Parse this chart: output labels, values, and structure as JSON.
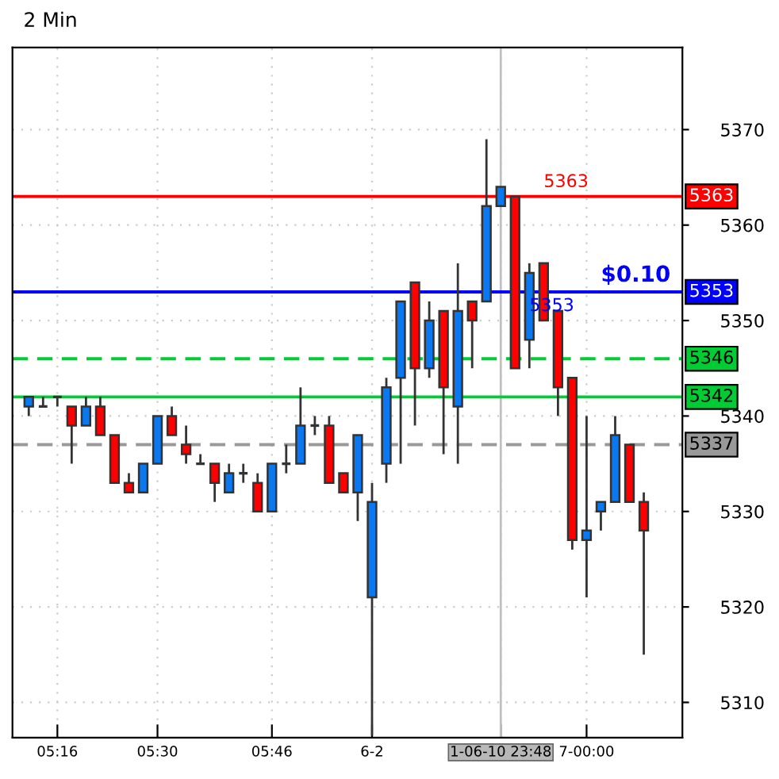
{
  "chart_data": {
    "type": "candlestick",
    "title": "2 Min",
    "categories": [
      null,
      null,
      "05:16",
      null,
      null,
      null,
      null,
      null,
      null,
      "05:30",
      null,
      null,
      null,
      null,
      null,
      null,
      null,
      "05:46",
      null,
      null,
      null,
      null,
      null,
      null,
      "6-2",
      null,
      null,
      null,
      null,
      null,
      null,
      null,
      null,
      "1-06-10 23:48",
      null,
      null,
      null,
      null,
      null,
      "7-00:00",
      null,
      null,
      null,
      null
    ],
    "ohlc": [
      [
        5341,
        5342,
        5340,
        5342
      ],
      [
        5341,
        5342,
        5341,
        5341
      ],
      [
        5342,
        5342,
        5341,
        5342
      ],
      [
        5341,
        5341,
        5335,
        5339
      ],
      [
        5339,
        5342,
        5339,
        5341
      ],
      [
        5341,
        5342,
        5338,
        5338
      ],
      [
        5338,
        5338,
        5333,
        5333
      ],
      [
        5333,
        5334,
        5332,
        5332
      ],
      [
        5332,
        5335,
        5332,
        5335
      ],
      [
        5335,
        5340,
        5335,
        5340
      ],
      [
        5340,
        5341,
        5338,
        5338
      ],
      [
        5337,
        5339,
        5335,
        5336
      ],
      [
        5335,
        5336,
        5335,
        5335
      ],
      [
        5335,
        5335,
        5331,
        5333
      ],
      [
        5332,
        5335,
        5332,
        5334
      ],
      [
        5334,
        5335,
        5333,
        5334
      ],
      [
        5333,
        5334,
        5330,
        5330
      ],
      [
        5330,
        5335,
        5330,
        5335
      ],
      [
        5335,
        5337,
        5334,
        5335
      ],
      [
        5335,
        5343,
        5335,
        5339
      ],
      [
        5339,
        5340,
        5338,
        5339
      ],
      [
        5339,
        5340,
        5333,
        5333
      ],
      [
        5334,
        5334,
        5332,
        5332
      ],
      [
        5332,
        5338,
        5329,
        5338
      ],
      [
        5321,
        5333,
        5306.5,
        5331
      ],
      [
        5335,
        5344,
        5333,
        5343
      ],
      [
        5344,
        5352,
        5335,
        5352
      ],
      [
        5354,
        5354,
        5339,
        5345
      ],
      [
        5345,
        5352,
        5344,
        5350
      ],
      [
        5351,
        5351,
        5336,
        5343
      ],
      [
        5341,
        5356,
        5335,
        5351
      ],
      [
        5352,
        5352,
        5345,
        5350
      ],
      [
        5352,
        5369,
        5352,
        5362
      ],
      [
        5362,
        5364,
        5362,
        5364
      ],
      [
        5363,
        5363,
        5345,
        5345
      ],
      [
        5348,
        5356,
        5345,
        5355
      ],
      [
        5356,
        5356,
        5350,
        5350
      ],
      [
        5351,
        5351,
        5340,
        5343
      ],
      [
        5344,
        5344,
        5326,
        5327
      ],
      [
        5327,
        5340,
        5321,
        5328
      ],
      [
        5330,
        5331,
        5328,
        5331
      ],
      [
        5331,
        5340,
        5331,
        5338
      ],
      [
        5337,
        5337,
        5331,
        5331
      ],
      [
        5331,
        5332,
        5315,
        5328
      ]
    ],
    "colors": [
      "#0a78f0",
      "#333333",
      "#333333",
      "#ff0000",
      "#0a78f0",
      "#ff0000",
      "#ff0000",
      "#ff0000",
      "#0a78f0",
      "#0a78f0",
      "#ff0000",
      "#ff0000",
      "#333333",
      "#ff0000",
      "#0a78f0",
      "#333333",
      "#ff0000",
      "#0a78f0",
      "#333333",
      "#0a78f0",
      "#333333",
      "#ff0000",
      "#ff0000",
      "#0a78f0",
      "#0a78f0",
      "#0a78f0",
      "#0a78f0",
      "#ff0000",
      "#0a78f0",
      "#ff0000",
      "#0a78f0",
      "#ff0000",
      "#0a78f0",
      "#0a78f0",
      "#ff0000",
      "#0a78f0",
      "#ff0000",
      "#ff0000",
      "#ff0000",
      "#0a78f0",
      "#0a78f0",
      "#0a78f0",
      "#ff0000",
      "#ff0000"
    ],
    "ylim": [
      5306.3,
      5378.6
    ],
    "yticks": [
      5310,
      5320,
      5330,
      5340,
      5350,
      5360,
      5370
    ],
    "grid": true,
    "ref_lines": [
      {
        "axis": "y",
        "value": 5363,
        "label": "5363",
        "color": "#ff0000",
        "line_style": "solid"
      },
      {
        "axis": "y",
        "value": 5353,
        "label": "5353",
        "color": "#0000ff",
        "line_style": "solid"
      },
      {
        "axis": "y",
        "value": 5346,
        "label": "5346",
        "color": "#00cc33",
        "line_style": "dashed"
      },
      {
        "axis": "y",
        "value": 5342,
        "label": "5342",
        "color": "#00cc33",
        "line_style": "solid"
      },
      {
        "axis": "y",
        "value": 5337,
        "label": "5337",
        "color": "#999999",
        "line_style": "dashed"
      },
      {
        "axis": "x",
        "value": "1-06-10 23:48",
        "color": "#c0c0c0",
        "line_style": "solid"
      }
    ],
    "annotations": [
      {
        "text": "5363",
        "y": 5363
      },
      {
        "text": "5353",
        "y": 5353
      },
      {
        "text": "$0.10",
        "y": 5353
      }
    ]
  }
}
